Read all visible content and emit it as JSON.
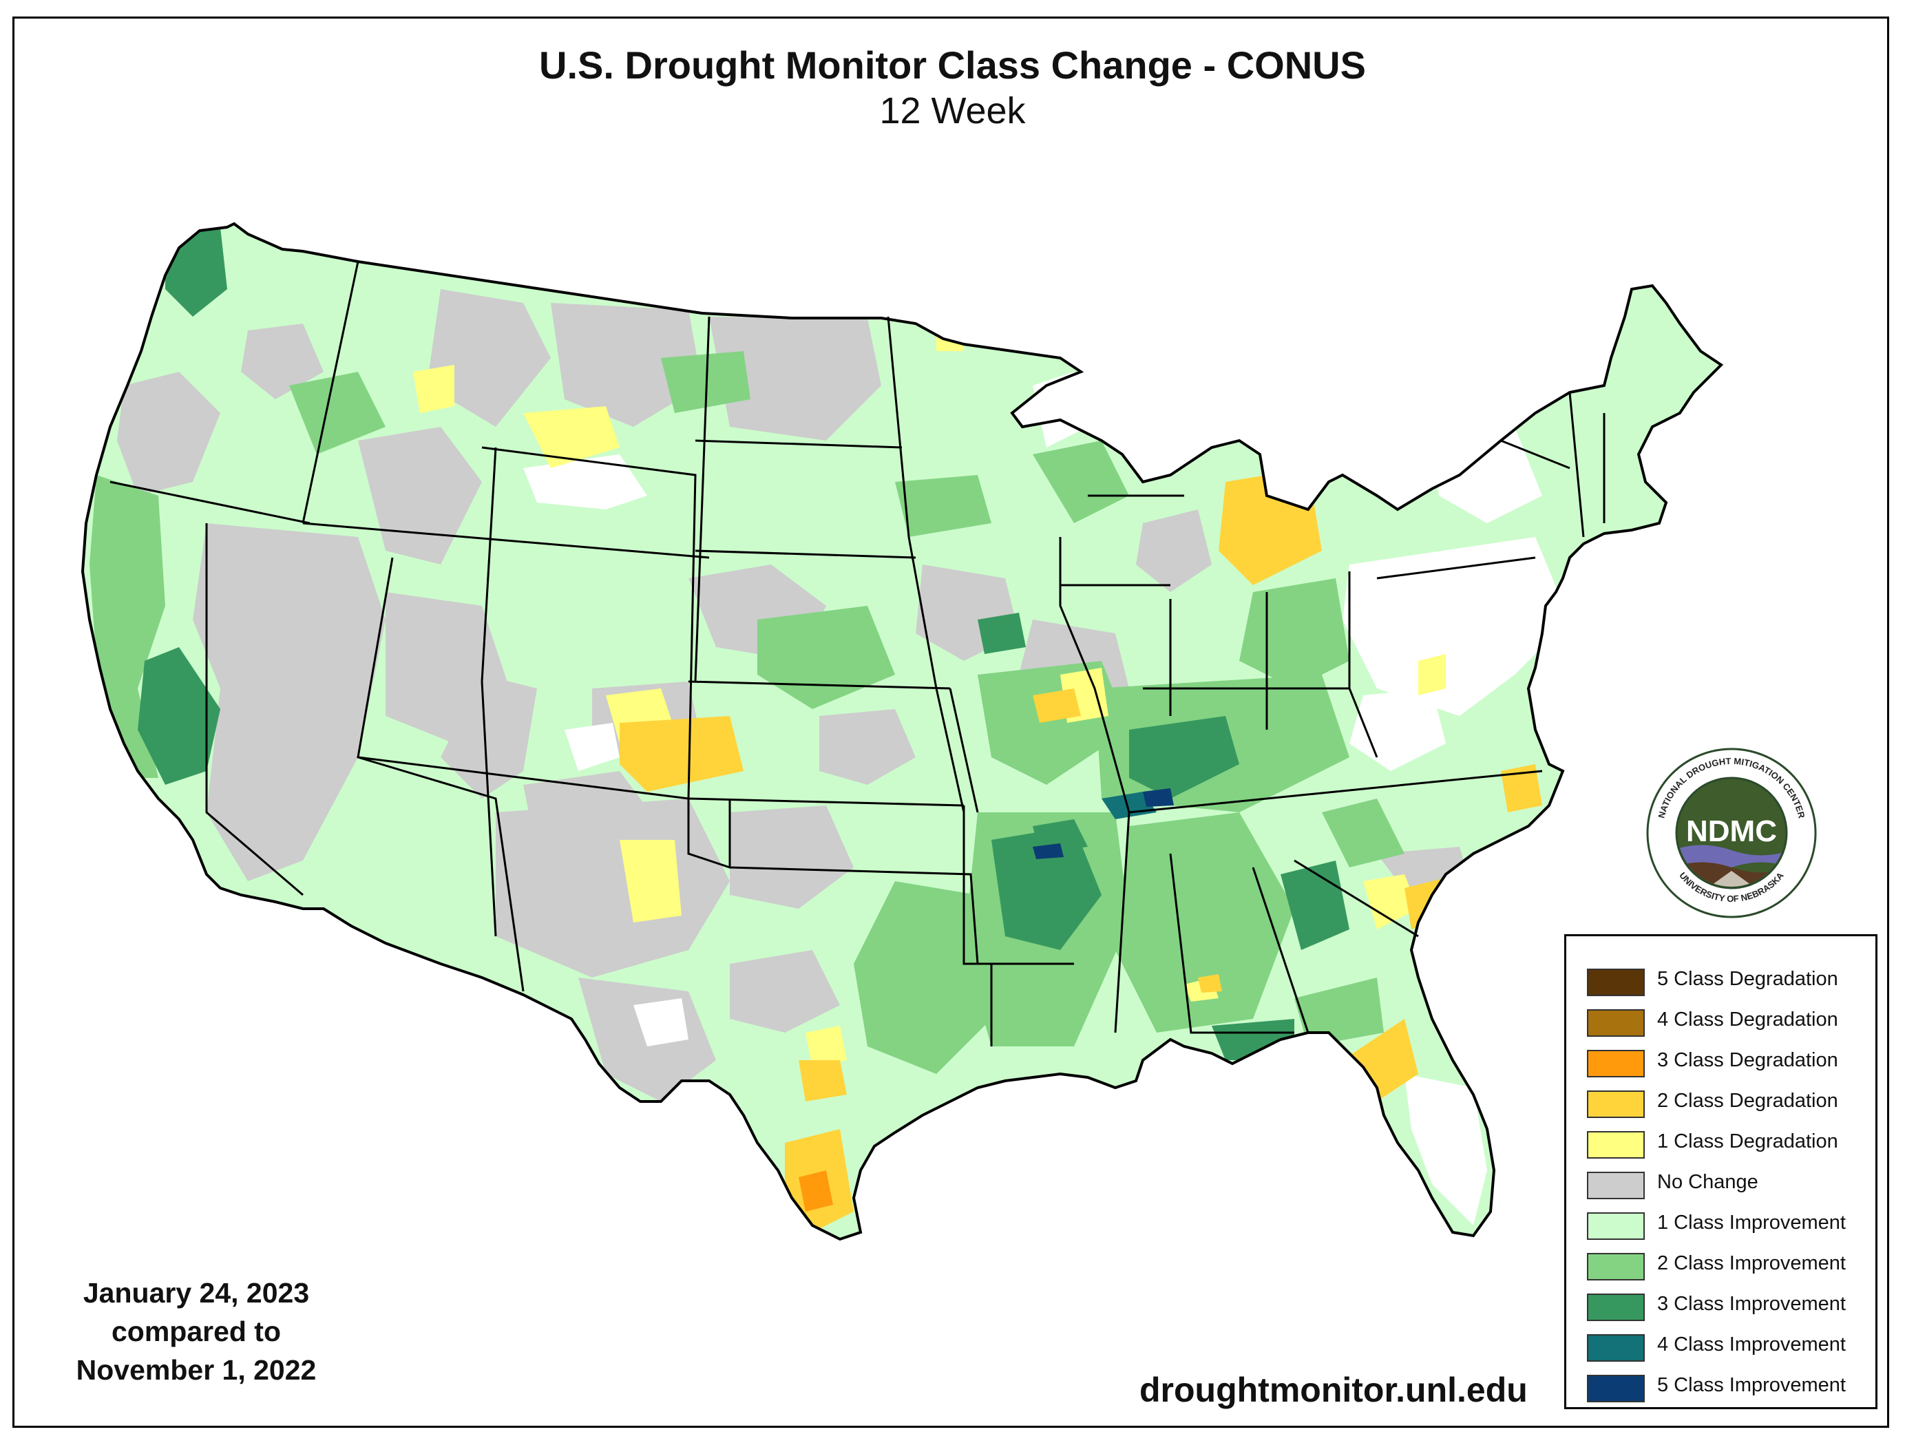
{
  "title": "U.S. Drought Monitor Class Change - CONUS",
  "subtitle": "12 Week",
  "date_line_1": "January 24, 2023",
  "date_line_2": "compared to",
  "date_line_3": "November 1, 2022",
  "website": "droughtmonitor.unl.edu",
  "logo": {
    "acronym": "NDMC",
    "ring_top": "NATIONAL DROUGHT MITIGATION CENTER",
    "ring_bottom": "UNIVERSITY OF NEBRASKA"
  },
  "legend": [
    {
      "label": "5 Class Degradation",
      "color": "#5a3508"
    },
    {
      "label": "4 Class Degradation",
      "color": "#a8720e"
    },
    {
      "label": "3 Class Degradation",
      "color": "#ff9a0d"
    },
    {
      "label": "2 Class Degradation",
      "color": "#ffd43b"
    },
    {
      "label": "1 Class Degradation",
      "color": "#ffff80"
    },
    {
      "label": "No Change",
      "color": "#cdcdcd"
    },
    {
      "label": "1 Class Improvement",
      "color": "#ccfccc"
    },
    {
      "label": "2 Class Improvement",
      "color": "#83d383"
    },
    {
      "label": "3 Class Improvement",
      "color": "#37985f"
    },
    {
      "label": "4 Class Improvement",
      "color": "#127277"
    },
    {
      "label": "5 Class Improvement",
      "color": "#0b3d74"
    }
  ]
}
